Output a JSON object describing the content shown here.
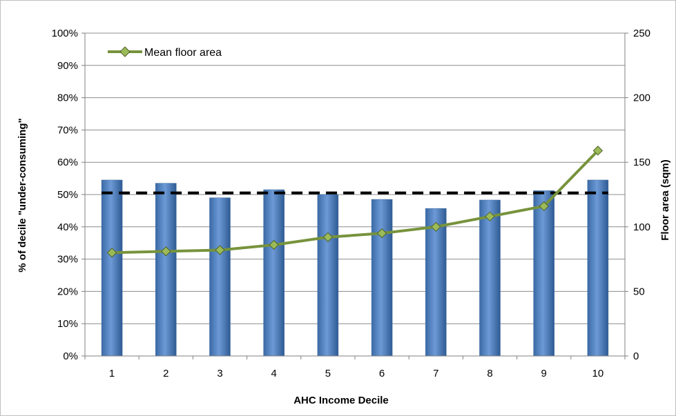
{
  "chart_data": {
    "type": "bar",
    "title": "",
    "xlabel": "AHC Income Decile",
    "ylabel": "% of decile \"under-consuming\"",
    "y2label": "Floor area (sqm)",
    "categories": [
      "1",
      "2",
      "3",
      "4",
      "5",
      "6",
      "7",
      "8",
      "9",
      "10"
    ],
    "ylim": [
      0,
      100
    ],
    "yticks": [
      "0%",
      "10%",
      "20%",
      "30%",
      "40%",
      "50%",
      "60%",
      "70%",
      "80%",
      "90%",
      "100%"
    ],
    "y2lim": [
      0,
      250
    ],
    "y2ticks": [
      "0",
      "50",
      "100",
      "150",
      "200",
      "250"
    ],
    "grid": "horizontal",
    "legend": "top-left",
    "series": [
      {
        "type": "bar",
        "axis": "left",
        "color": "#4f81bd",
        "values": [
          54.5,
          53.5,
          49,
          51.5,
          50,
          48.5,
          45.7,
          48.3,
          51.2,
          54.5
        ]
      },
      {
        "name": "Mean floor area",
        "type": "line",
        "axis": "right",
        "color": "#77933c",
        "marker": "diamond",
        "values": [
          80,
          81,
          82,
          86,
          92,
          95,
          100,
          108,
          116,
          159
        ]
      },
      {
        "type": "dashed-line",
        "axis": "left",
        "color": "#000000",
        "values": [
          50.5,
          50.5,
          50.5,
          50.5,
          50.5,
          50.5,
          50.5,
          50.5,
          50.5,
          50.5
        ]
      }
    ]
  }
}
